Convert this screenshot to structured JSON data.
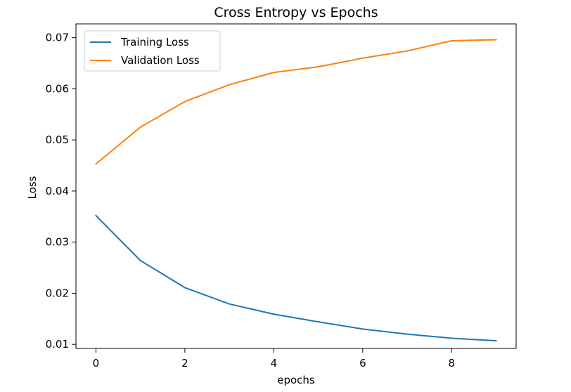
{
  "chart_data": {
    "type": "line",
    "title": "Cross Entropy vs Epochs",
    "xlabel": "epochs",
    "ylabel": "Loss",
    "xlim": [
      -0.45,
      9.45
    ],
    "ylim": [
      0.0092,
      0.0727
    ],
    "xticks": [
      0,
      2,
      4,
      6,
      8
    ],
    "yticks": [
      0.01,
      0.02,
      0.03,
      0.04,
      0.05,
      0.06,
      0.07
    ],
    "ytick_labels": [
      "0.01",
      "0.02",
      "0.03",
      "0.04",
      "0.05",
      "0.06",
      "0.07"
    ],
    "grid": false,
    "legend": "upper-left",
    "x": [
      0,
      1,
      2,
      3,
      4,
      5,
      6,
      7,
      8,
      9
    ],
    "series": [
      {
        "name": "Training Loss",
        "color": "#1f77b4",
        "values": [
          0.0352,
          0.0264,
          0.0211,
          0.0179,
          0.0159,
          0.0144,
          0.013,
          0.012,
          0.0112,
          0.0107
        ]
      },
      {
        "name": "Validation Loss",
        "color": "#ff7f0e",
        "values": [
          0.0453,
          0.0525,
          0.0575,
          0.0608,
          0.0632,
          0.0643,
          0.066,
          0.0674,
          0.0694,
          0.0696
        ]
      }
    ]
  }
}
